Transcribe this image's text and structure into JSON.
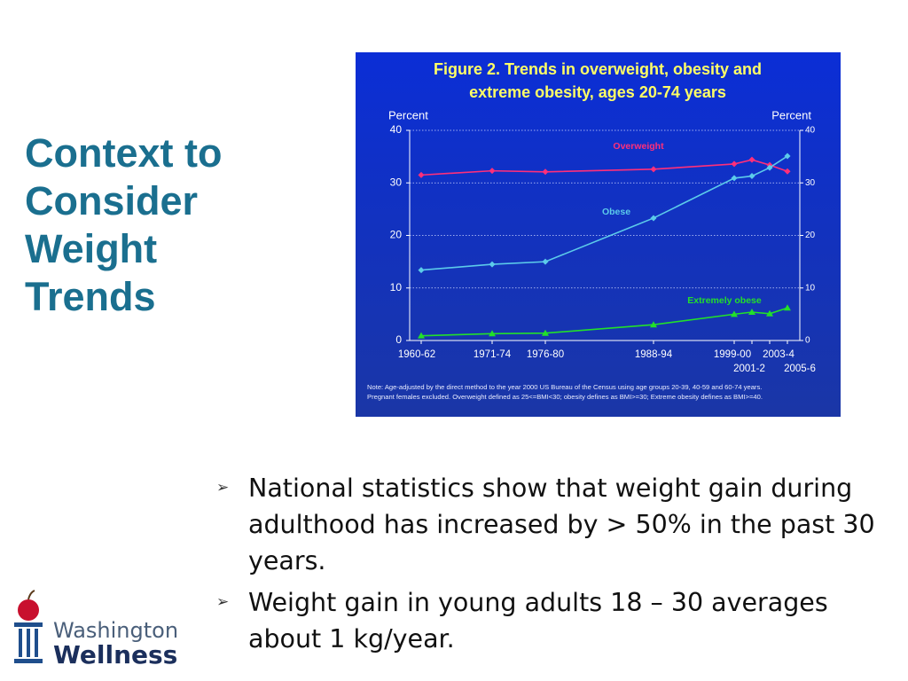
{
  "slide": {
    "title": [
      "Context to",
      "Consider",
      "Weight",
      "Trends"
    ],
    "bullets": [
      "National statistics show that weight gain during adulthood has increased by > 50% in the past 30 years.",
      "Weight gain in young adults 18 – 30 averages about 1 kg/year."
    ],
    "logo": [
      "Washington",
      "Wellness"
    ]
  },
  "chart_data": {
    "type": "line",
    "title": [
      "Figure 2. Trends in overweight, obesity and",
      "extreme obesity, ages 20-74 years"
    ],
    "ylabel": "Percent",
    "y2label": "Percent",
    "categories": [
      "1960-62",
      "1971-74",
      "1976-80",
      "1988-94",
      "1999-00",
      "2001-2",
      "2003-4",
      "2005-6"
    ],
    "series": [
      {
        "name": "Overweight",
        "color": "#ff2f7a",
        "marker": "diamond",
        "values": [
          31.5,
          32.3,
          32.1,
          32.6,
          33.6,
          34.4,
          33.4,
          32.2
        ]
      },
      {
        "name": "Obese",
        "color": "#5ccbea",
        "marker": "diamond",
        "values": [
          13.4,
          14.5,
          15.0,
          23.3,
          30.9,
          31.3,
          32.9,
          35.1
        ]
      },
      {
        "name": "Extremely obese",
        "color": "#22e02a",
        "marker": "triangle",
        "values": [
          0.9,
          1.3,
          1.4,
          3.0,
          5.0,
          5.4,
          5.1,
          6.2
        ]
      }
    ],
    "ylim": [
      0,
      40
    ],
    "yticks": [
      0,
      10,
      20,
      30,
      40
    ],
    "y2lim": [
      0,
      40
    ],
    "y2ticks": [
      0,
      10,
      20,
      30,
      40
    ],
    "grid": true,
    "note": [
      "Note: Age-adjusted by the direct method to the year 2000 US Bureau of the Census using age groups 20-39, 40-59 and 60-74 years.",
      "Pregnant females excluded. Overweight defined as 25<=BMI<30; obesity defines as BMI>=30; Extreme obesity defines as BMI>=40."
    ]
  }
}
